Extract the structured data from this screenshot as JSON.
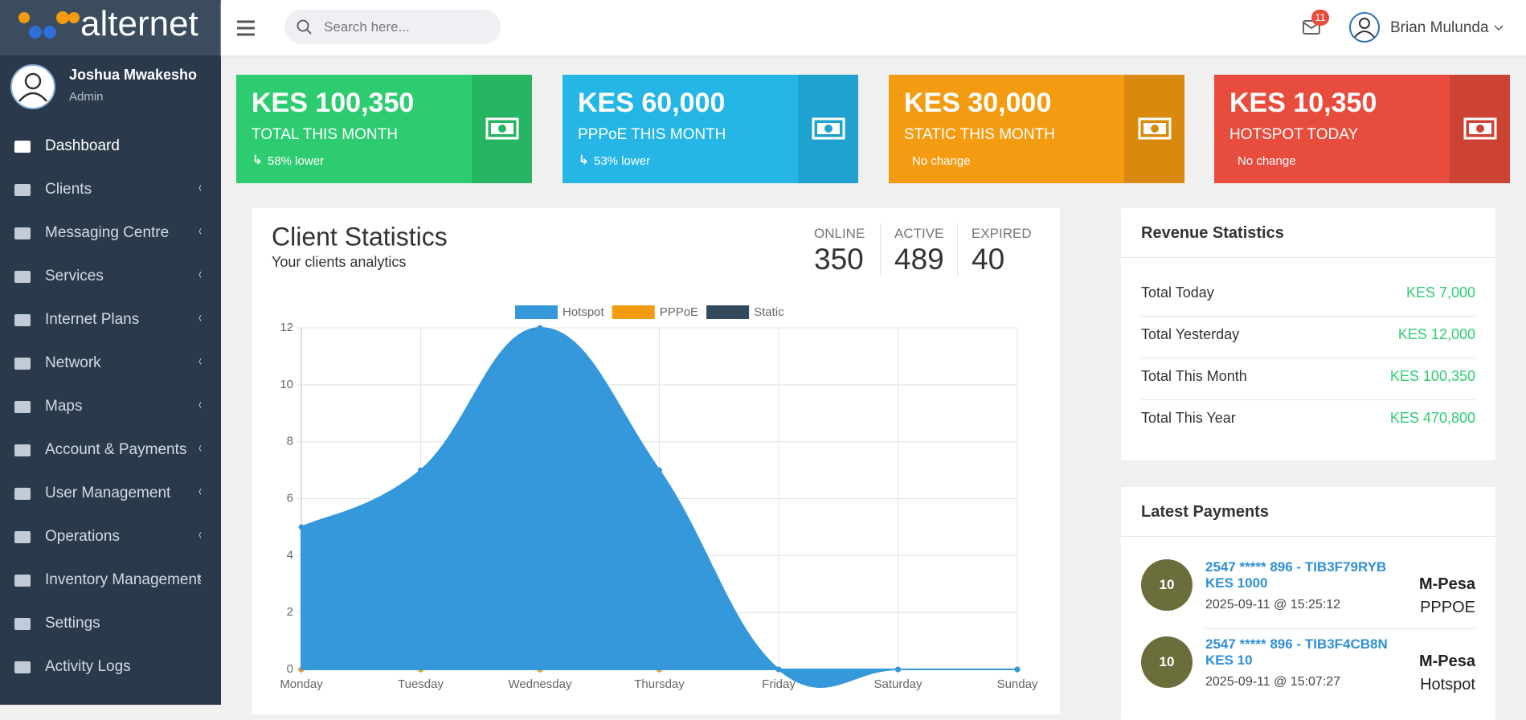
{
  "brand": {
    "logo": "alternet"
  },
  "user": {
    "name": "Joshua Mwakesho",
    "role": "Admin"
  },
  "menu": [
    {
      "label": "Dashboard"
    },
    {
      "label": "Clients"
    },
    {
      "label": "Messaging Centre"
    },
    {
      "label": "Services"
    },
    {
      "label": "Internet Plans"
    },
    {
      "label": "Network"
    },
    {
      "label": "Maps"
    },
    {
      "label": "Account & Payments"
    },
    {
      "label": "User Management"
    },
    {
      "label": "Operations"
    },
    {
      "label": "Inventory Management"
    },
    {
      "label": "Settings"
    },
    {
      "label": "Activity Logs"
    }
  ],
  "header": {
    "search_placeholder": "Search here...",
    "mail_badge": "11",
    "account": "Brian Mulunda"
  },
  "cards": [
    {
      "value": "KES 100,350",
      "label": "TOTAL THIS MONTH",
      "note": "58% lower"
    },
    {
      "value": "KES 60,000",
      "label": "PPPoE THIS MONTH",
      "note": "53% lower"
    },
    {
      "value": "KES 30,000",
      "label": "STATIC THIS MONTH",
      "note": "No change"
    },
    {
      "value": "KES 10,350",
      "label": "HOTSPOT TODAY",
      "note": "No change"
    }
  ],
  "client_stats": {
    "stats": [
      {
        "label": "ONLINE",
        "value": "350"
      },
      {
        "label": "ACTIVE",
        "value": "489"
      },
      {
        "label": "EXPIRED",
        "value": "40"
      }
    ]
  },
  "chart_data": {
    "type": "area",
    "title": "Client Statistics",
    "subtitle": "Your clients analytics",
    "categories": [
      "Monday",
      "Tuesday",
      "Wednesday",
      "Thursday",
      "Friday",
      "Saturday",
      "Sunday"
    ],
    "series": [
      {
        "name": "Hotspot",
        "color": "#3498db",
        "values": [
          5,
          7,
          12,
          7,
          0,
          0,
          0
        ]
      },
      {
        "name": "PPPoE",
        "color": "#f39c12",
        "values": [
          0,
          0,
          0,
          0,
          0,
          0,
          0
        ]
      },
      {
        "name": "Static",
        "color": "#34495e",
        "values": [
          0,
          0,
          0,
          0,
          0,
          0,
          0
        ]
      }
    ],
    "ylim": [
      0,
      12
    ],
    "yticks": [
      0,
      2,
      4,
      6,
      8,
      10,
      12
    ],
    "grid": true,
    "legend": "top"
  },
  "revenue": {
    "title": "Revenue Statistics",
    "rows": [
      {
        "label": "Total Today",
        "value": "KES 7,000"
      },
      {
        "label": "Total Yesterday",
        "value": "KES 12,000"
      },
      {
        "label": "Total This Month",
        "value": "KES 100,350"
      },
      {
        "label": "Total This Year",
        "value": "KES 470,800"
      }
    ]
  },
  "payments": {
    "title": "Latest Payments",
    "items": [
      {
        "badge": "10",
        "reference": "2547 ***** 896 - TIB3F79RYB",
        "amount": "KES 1000",
        "time": "2025-09-11 @ 15:25:12",
        "method": "M-Pesa",
        "type": "PPPOE"
      },
      {
        "badge": "10",
        "reference": "2547 ***** 896 - TIB3F4CB8N",
        "amount": "KES 10",
        "time": "2025-09-11 @ 15:07:27",
        "method": "M-Pesa",
        "type": "Hotspot"
      }
    ]
  }
}
